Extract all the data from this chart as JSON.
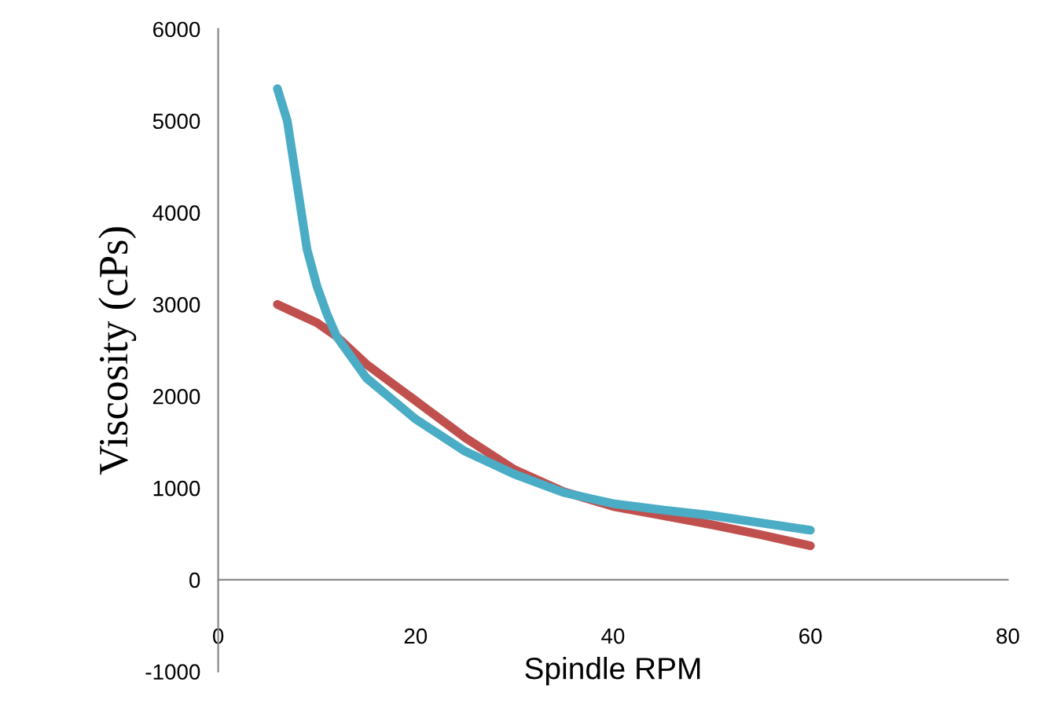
{
  "chart_data": {
    "type": "line",
    "xlabel": "Spindle RPM",
    "ylabel": "Viscosity (cPs)",
    "xlim": [
      0,
      80
    ],
    "xticks": [
      0,
      20,
      40,
      60,
      80
    ],
    "ylim": [
      -1000,
      6000
    ],
    "yticks": [
      -1000,
      0,
      1000,
      2000,
      3000,
      4000,
      5000,
      6000
    ],
    "grid": false,
    "marker": "none",
    "line_style": "solid",
    "series": [
      {
        "color": "#c0504d",
        "x": [
          6,
          8,
          10,
          12,
          15,
          20,
          25,
          30,
          35,
          40,
          45,
          50,
          55,
          60
        ],
        "values": [
          3000,
          2900,
          2800,
          2650,
          2350,
          1950,
          1550,
          1200,
          960,
          800,
          700,
          600,
          490,
          370
        ]
      },
      {
        "color": "#4bacc6",
        "x": [
          6,
          7,
          8,
          9,
          10,
          11,
          12,
          15,
          20,
          25,
          30,
          35,
          40,
          45,
          50,
          55,
          60
        ],
        "values": [
          5350,
          5000,
          4300,
          3600,
          3200,
          2900,
          2650,
          2200,
          1750,
          1400,
          1150,
          950,
          830,
          760,
          700,
          620,
          540
        ]
      }
    ]
  }
}
